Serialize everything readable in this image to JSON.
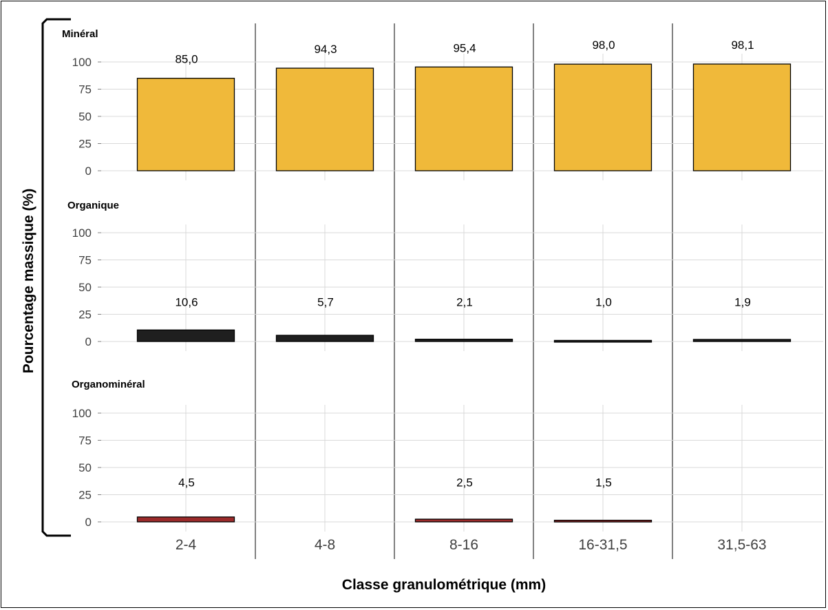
{
  "chart_data": {
    "type": "bar",
    "layout": "stacked-panels",
    "ylabel": "Pourcentage massique (%)",
    "xlabel": "Classe granulométrique (mm)",
    "categories": [
      "2-4",
      "4-8",
      "8-16",
      "16-31,5",
      "31,5-63"
    ],
    "ylim": [
      0,
      100
    ],
    "yticks": [
      0,
      25,
      50,
      75,
      100
    ],
    "grid": true,
    "panels": [
      {
        "name": "Minéral",
        "color": "#F0B93A",
        "values": [
          85.0,
          94.3,
          95.4,
          98.0,
          98.1
        ],
        "labels": [
          "85,0",
          "94,3",
          "95,4",
          "98,0",
          "98,1"
        ]
      },
      {
        "name": "Organique",
        "color": "#1F1F1F",
        "values": [
          10.6,
          5.7,
          2.1,
          1.0,
          1.9
        ],
        "labels": [
          "10,6",
          "5,7",
          "2,1",
          "1,0",
          "1,9"
        ]
      },
      {
        "name": "Organominéral",
        "color": "#9B2A2A",
        "values": [
          4.5,
          null,
          2.5,
          1.5,
          null
        ],
        "labels": [
          "4,5",
          "",
          "2,5",
          "1,5",
          ""
        ]
      }
    ]
  }
}
